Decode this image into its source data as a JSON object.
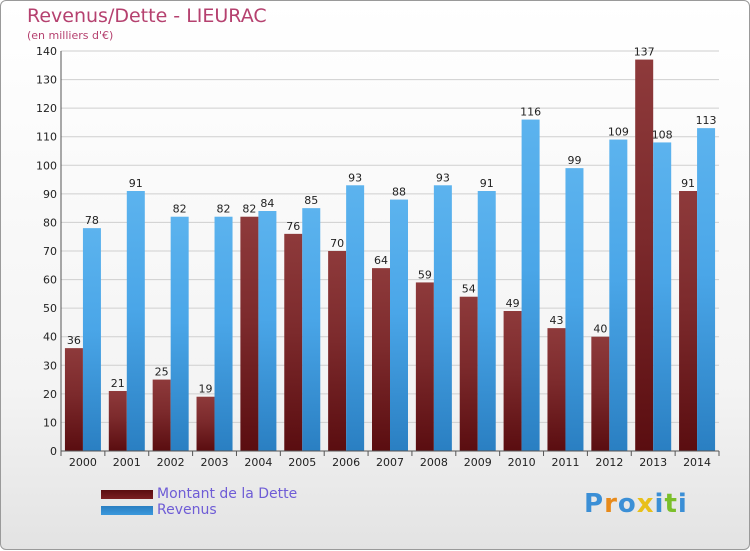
{
  "header": {
    "title": "Revenus/Dette - LIEURAC",
    "subtitle": "(en milliers d'€)"
  },
  "colors": {
    "dette": "#7a1f22",
    "revenus": "#3b98dc",
    "title": "#b5416f",
    "legend_text": "#6e5cd6"
  },
  "legend": [
    {
      "label": "Montant de la Dette",
      "color": "#7a1f22"
    },
    {
      "label": "Revenus",
      "color": "#3b98dc"
    }
  ],
  "logo": {
    "text": "Proxiti",
    "letter_colors": [
      "#3b8fd6",
      "#e88a1a",
      "#3b8fd6",
      "#e8c01a",
      "#3b8fd6",
      "#7bbf2a",
      "#3b8fd6"
    ]
  },
  "chart_data": {
    "type": "bar",
    "categories": [
      "2000",
      "2001",
      "2002",
      "2003",
      "2004",
      "2005",
      "2006",
      "2007",
      "2008",
      "2009",
      "2010",
      "2011",
      "2012",
      "2013",
      "2014"
    ],
    "series": [
      {
        "name": "Montant de la Dette",
        "values": [
          36,
          21,
          25,
          19,
          82,
          76,
          70,
          64,
          59,
          54,
          49,
          43,
          40,
          137,
          91
        ]
      },
      {
        "name": "Revenus",
        "values": [
          78,
          91,
          82,
          82,
          84,
          85,
          93,
          88,
          93,
          91,
          116,
          99,
          109,
          108,
          113
        ]
      }
    ],
    "title": "Revenus/Dette - LIEURAC",
    "ylabel": "(en milliers d'€)",
    "ylim": [
      0,
      140
    ],
    "yticks": [
      0,
      10,
      20,
      30,
      40,
      50,
      60,
      70,
      80,
      90,
      100,
      110,
      120,
      130,
      140
    ],
    "grid": true,
    "data_labels": true,
    "legend_position": "bottom-left"
  }
}
